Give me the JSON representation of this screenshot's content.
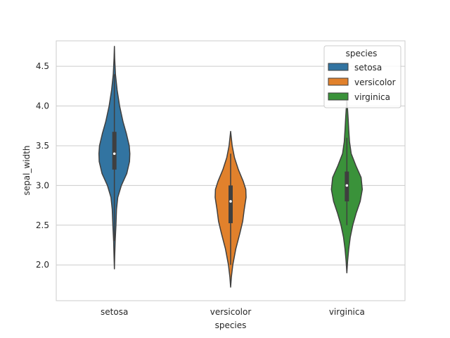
{
  "chart_data": {
    "type": "violin",
    "xlabel": "species",
    "ylabel": "sepal_width",
    "categories": [
      "setosa",
      "versicolor",
      "virginica"
    ],
    "ylim": [
      1.55,
      4.82
    ],
    "yticks": [
      2.0,
      2.5,
      3.0,
      3.5,
      4.0,
      4.5
    ],
    "ytick_labels": [
      "2.0",
      "2.5",
      "3.0",
      "3.5",
      "4.0",
      "4.5"
    ],
    "grid": "horizontal",
    "legend": {
      "title": "species",
      "placement": "top-right",
      "entries": [
        "setosa",
        "versicolor",
        "virginica"
      ]
    },
    "colors": [
      "#3274a1",
      "#e1812c",
      "#3a923a"
    ],
    "series": [
      {
        "name": "setosa",
        "color": "#3274a1",
        "min": 2.3,
        "q1": 3.2,
        "median": 3.4,
        "q3": 3.675,
        "max": 4.4,
        "kde_range": [
          1.95,
          4.75
        ],
        "density": [
          [
            1.95,
            0.0
          ],
          [
            2.1,
            0.02
          ],
          [
            2.3,
            0.05
          ],
          [
            2.5,
            0.1
          ],
          [
            2.7,
            0.14
          ],
          [
            2.85,
            0.22
          ],
          [
            3.0,
            0.45
          ],
          [
            3.15,
            0.8
          ],
          [
            3.3,
            0.98
          ],
          [
            3.4,
            1.0
          ],
          [
            3.5,
            0.96
          ],
          [
            3.65,
            0.78
          ],
          [
            3.8,
            0.56
          ],
          [
            4.0,
            0.34
          ],
          [
            4.2,
            0.18
          ],
          [
            4.4,
            0.07
          ],
          [
            4.6,
            0.02
          ],
          [
            4.75,
            0.0
          ]
        ]
      },
      {
        "name": "versicolor",
        "color": "#e1812c",
        "min": 2.0,
        "q1": 2.525,
        "median": 2.8,
        "q3": 3.0,
        "max": 3.4,
        "kde_range": [
          1.72,
          3.68
        ],
        "density": [
          [
            1.72,
            0.0
          ],
          [
            1.85,
            0.05
          ],
          [
            2.0,
            0.14
          ],
          [
            2.2,
            0.33
          ],
          [
            2.4,
            0.6
          ],
          [
            2.55,
            0.78
          ],
          [
            2.7,
            0.88
          ],
          [
            2.85,
            1.0
          ],
          [
            2.95,
            0.98
          ],
          [
            3.05,
            0.82
          ],
          [
            3.2,
            0.5
          ],
          [
            3.35,
            0.25
          ],
          [
            3.5,
            0.1
          ],
          [
            3.68,
            0.0
          ]
        ]
      },
      {
        "name": "virginica",
        "color": "#3a923a",
        "min": 2.5,
        "q1": 2.8,
        "median": 3.0,
        "q3": 3.175,
        "max": 3.6,
        "kde_range": [
          1.9,
          4.1
        ],
        "density": [
          [
            1.9,
            0.0
          ],
          [
            2.05,
            0.05
          ],
          [
            2.2,
            0.12
          ],
          [
            2.35,
            0.22
          ],
          [
            2.5,
            0.38
          ],
          [
            2.65,
            0.6
          ],
          [
            2.8,
            0.86
          ],
          [
            2.95,
            1.0
          ],
          [
            3.1,
            0.92
          ],
          [
            3.25,
            0.58
          ],
          [
            3.4,
            0.28
          ],
          [
            3.55,
            0.17
          ],
          [
            3.7,
            0.12
          ],
          [
            3.85,
            0.08
          ],
          [
            4.0,
            0.03
          ],
          [
            4.1,
            0.0
          ]
        ]
      }
    ]
  }
}
